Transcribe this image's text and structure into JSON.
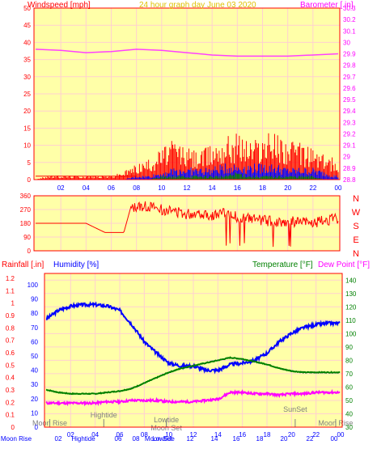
{
  "header": {
    "left_label": "Windspeed [mph]",
    "title": "24 hour graph day   June 03 2020",
    "right_label": "Barometer [.in]"
  },
  "colors": {
    "plot_bg": "#ffffa8",
    "frame": "#ff0000",
    "grid": "#ffd0d0",
    "tick_red": "#ff0000",
    "tick_magenta": "#ff00ff",
    "tick_blue": "#0000ff",
    "tick_green": "#008000",
    "wind": "#ff0000",
    "gust_blue": "#0000ff",
    "avg_green": "#008000",
    "barometer": "#ff40ff",
    "direction": "#ff0000",
    "humidity": "#0000ff",
    "temperature": "#008000",
    "dewpoint": "#ff00ff",
    "annotation": "#808080"
  },
  "chart_data": [
    {
      "type": "line",
      "title": "24 hour graph day   June 03 2020",
      "xlabel": "",
      "x_ticks": [
        "02",
        "04",
        "06",
        "08",
        "10",
        "12",
        "14",
        "16",
        "18",
        "20",
        "22",
        "00"
      ],
      "left_axis": {
        "label": "Windspeed [mph]",
        "ylim": [
          0,
          50
        ],
        "ticks": [
          "0",
          "5",
          "10",
          "15",
          "20",
          "25",
          "30",
          "35",
          "40",
          "45",
          "50"
        ]
      },
      "right_axis": {
        "label": "Barometer [.in]",
        "ylim": [
          28.8,
          30.3
        ],
        "ticks": [
          "28.8",
          "28.9",
          "29",
          "29.1",
          "29.2",
          "29.3",
          "29.4",
          "29.5",
          "29.6",
          "29.7",
          "29.8",
          "29.9",
          "30",
          "30.1",
          "30.2",
          "30.3"
        ]
      },
      "series": [
        {
          "axis": "right",
          "color": "#ff40ff",
          "x": [
            0,
            2,
            4,
            6,
            8,
            10,
            12,
            14,
            16,
            18,
            20,
            22,
            24
          ],
          "values": [
            29.94,
            29.93,
            29.91,
            29.92,
            29.94,
            29.93,
            29.91,
            29.89,
            29.88,
            29.88,
            29.88,
            29.89,
            29.9
          ]
        },
        {
          "axis": "left",
          "color": "#ff0000",
          "kind": "gust",
          "x": [
            0,
            1,
            2,
            3,
            4,
            5,
            6,
            7,
            8,
            9,
            10,
            11,
            12,
            13,
            14,
            15,
            16,
            17,
            18,
            19,
            20,
            21,
            22,
            23,
            24
          ],
          "values": [
            0,
            1,
            1,
            1,
            1,
            1,
            1,
            2,
            4,
            5,
            8,
            10,
            8,
            7,
            9,
            11,
            12,
            10,
            11,
            12,
            10,
            9,
            8,
            6,
            5
          ]
        },
        {
          "axis": "left",
          "color": "#0000ff",
          "kind": "average",
          "x": [
            0,
            1,
            2,
            3,
            4,
            5,
            6,
            7,
            8,
            9,
            10,
            11,
            12,
            13,
            14,
            15,
            16,
            17,
            18,
            19,
            20,
            21,
            22,
            23,
            24
          ],
          "values": [
            0,
            0,
            0,
            0,
            0,
            0,
            0,
            0,
            1,
            1,
            2,
            3,
            3,
            3,
            3,
            4,
            4,
            4,
            4,
            4,
            3,
            3,
            3,
            2,
            1
          ]
        },
        {
          "axis": "left",
          "color": "#008000",
          "kind": "min",
          "x": [
            0,
            1,
            2,
            3,
            4,
            5,
            6,
            7,
            8,
            9,
            10,
            11,
            12,
            13,
            14,
            15,
            16,
            17,
            18,
            19,
            20,
            21,
            22,
            23,
            24
          ],
          "values": [
            0,
            0,
            0,
            0,
            0,
            0,
            0,
            0,
            0,
            0,
            1,
            1,
            1,
            1,
            1,
            1,
            2,
            1,
            1,
            1,
            1,
            1,
            1,
            0,
            0
          ]
        }
      ]
    },
    {
      "type": "line",
      "title": "",
      "left_axis": {
        "label": "",
        "ylim": [
          0,
          360
        ],
        "ticks": [
          "0",
          "90",
          "180",
          "270",
          "360"
        ]
      },
      "right_axis": {
        "label": "",
        "ticks": [
          "N",
          "W",
          "S",
          "E",
          "N"
        ]
      },
      "series": [
        {
          "color": "#ff0000",
          "kind": "direction",
          "x": [
            0,
            2,
            4,
            5.5,
            6,
            7,
            7.5,
            8,
            9,
            10,
            11,
            12,
            13,
            14,
            15,
            16,
            17,
            18,
            19,
            20,
            21,
            22,
            23,
            24
          ],
          "values": [
            180,
            180,
            180,
            120,
            120,
            120,
            270,
            290,
            290,
            270,
            260,
            240,
            250,
            230,
            250,
            220,
            210,
            200,
            190,
            190,
            190,
            180,
            200,
            210
          ]
        }
      ]
    },
    {
      "type": "line",
      "title": "",
      "left_axis_outer": {
        "label": "Rainfall [.in]",
        "ylim": [
          0,
          1.2
        ],
        "ticks": [
          "0",
          "0.1",
          "0.2",
          "0.3",
          "0.4",
          "0.5",
          "0.6",
          "0.7",
          "0.8",
          "0.9",
          "1",
          "1.1",
          "1.2"
        ]
      },
      "left_axis_inner": {
        "label": "Humidity [%]",
        "ylim": [
          0,
          100
        ],
        "ticks": [
          "0",
          "10",
          "20",
          "30",
          "40",
          "50",
          "60",
          "70",
          "80",
          "90",
          "100"
        ]
      },
      "right_axis": {
        "label": "Temperature [°F]",
        "label2": "Dew Point [°F]",
        "ylim": [
          30,
          150
        ],
        "ticks": [
          "30",
          "40",
          "50",
          "60",
          "70",
          "80",
          "90",
          "100",
          "110",
          "120",
          "130",
          "140"
        ]
      },
      "x_ticks": [
        "02",
        "04",
        "06",
        "08",
        "10",
        "12",
        "14",
        "16",
        "18",
        "20",
        "22",
        "00"
      ],
      "annotations": [
        "Moon Rise",
        "Hightide",
        "Lowtide",
        "Moon Set",
        "SunSet",
        "Moon Rise"
      ],
      "footer_labels": [
        "Moon Rise",
        "02",
        "Hightide",
        "06",
        "08",
        "Moon Set",
        "Lowtide",
        "12",
        "14",
        "16",
        "18",
        "20",
        "22",
        "00"
      ],
      "series": [
        {
          "name": "Humidity [%]",
          "color": "#0000ff",
          "axis": "inner",
          "x": [
            0,
            1,
            2,
            3,
            4,
            5,
            6,
            7,
            8,
            9,
            10,
            11,
            12,
            13,
            14,
            15,
            16,
            17,
            18,
            19,
            20,
            21,
            22,
            23,
            24
          ],
          "values": [
            76,
            82,
            85,
            86,
            86,
            85,
            82,
            72,
            60,
            52,
            45,
            43,
            43,
            40,
            40,
            44,
            45,
            47,
            52,
            60,
            66,
            70,
            72,
            73,
            73
          ]
        },
        {
          "name": "Temperature [°F]",
          "color": "#008000",
          "axis": "right",
          "x": [
            0,
            1,
            2,
            3,
            4,
            5,
            6,
            7,
            8,
            9,
            10,
            11,
            12,
            13,
            14,
            15,
            16,
            17,
            18,
            19,
            20,
            21,
            22,
            23,
            24
          ],
          "values": [
            58,
            56,
            55,
            55,
            55,
            56,
            57,
            59,
            63,
            67,
            71,
            74,
            76,
            78,
            80,
            82,
            81,
            79,
            77,
            74,
            72,
            71,
            71,
            71,
            71
          ]
        },
        {
          "name": "Dew Point [°F]",
          "color": "#ff00ff",
          "axis": "right",
          "x": [
            0,
            1,
            2,
            3,
            4,
            5,
            6,
            7,
            8,
            9,
            10,
            11,
            12,
            13,
            14,
            15,
            16,
            17,
            18,
            19,
            20,
            21,
            22,
            23,
            24
          ],
          "values": [
            48,
            48,
            48,
            48,
            48,
            49,
            49,
            50,
            50,
            50,
            49,
            49,
            49,
            50,
            51,
            56,
            56,
            55,
            55,
            54,
            55,
            55,
            56,
            56,
            56
          ]
        }
      ]
    }
  ]
}
